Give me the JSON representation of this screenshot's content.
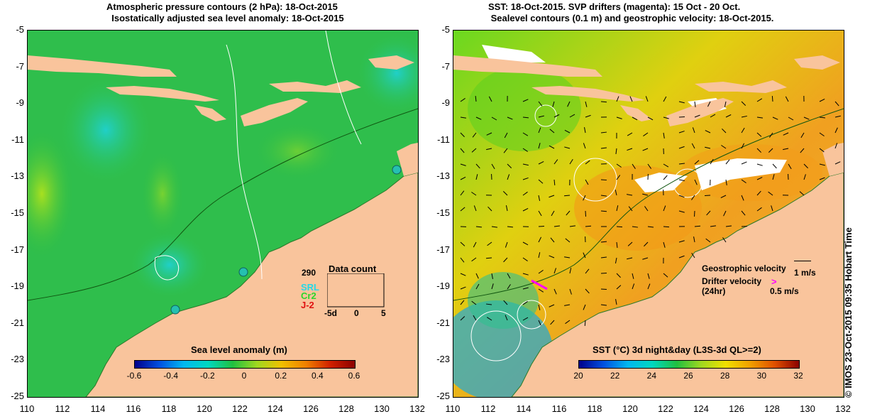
{
  "left_title": "Atmospheric pressure contours (2 hPa): 18-Oct-2015\n  Isostatically adjusted sea level anomaly: 18-Oct-2015",
  "right_title": "SST: 18-Oct-2015. SVP drifters (magenta): 15 Oct - 20 Oct.\n Sealevel contours (0.1 m) and geostrophic velocity: 18-Oct-2015.",
  "y_ticks": [
    "-5",
    "-7",
    "-9",
    "-11",
    "-13",
    "-15",
    "-17",
    "-19",
    "-21",
    "-23",
    "-25"
  ],
  "x_ticks": [
    "110",
    "112",
    "114",
    "116",
    "118",
    "120",
    "122",
    "124",
    "126",
    "128",
    "130",
    "132"
  ],
  "left_colorbar": {
    "title": "Sea level anomaly (m)",
    "ticks": [
      "-0.6",
      "-0.4",
      "-0.2",
      "0",
      "0.2",
      "0.4",
      "0.6"
    ]
  },
  "right_colorbar": {
    "title": "SST (°C) 3d night&day (L3S-3d QL>=2)",
    "ticks": [
      "20",
      "22",
      "24",
      "26",
      "28",
      "30",
      "32"
    ]
  },
  "data_count": {
    "title": "Data count",
    "max_label": "290",
    "series": [
      "SRL",
      "Cr2",
      "J-2"
    ],
    "x_ticks": [
      "-5d",
      "0",
      "5"
    ]
  },
  "velocity_legend": {
    "geostrophic_label": "Geostrophic velocity",
    "geostrophic_scale": "1 m/s",
    "drifter_label": "Drifter velocity\n(24hr)",
    "drifter_scale": "0.5 m/s"
  },
  "copyright": "© IMOS 23-Oct-2015 09:35 Hobart Time",
  "colors": {
    "land": "#f9c49c",
    "ocean_green": "#2cbf4a",
    "ocean_cyan": "#28d0b0",
    "sst_orange": "#f0a020",
    "drifter": "#ff00ff"
  }
}
